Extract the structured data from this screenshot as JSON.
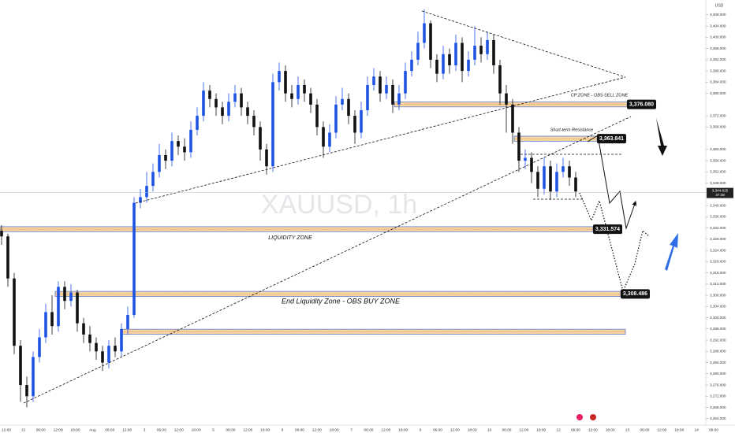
{
  "chart_data": {
    "type": "candlestick",
    "watermark": "XAUUSD, 1h",
    "currency": "USD",
    "up_color": "#1e53e5",
    "down_color": "#111111",
    "ylim": [
      3261.7,
      3413.3
    ],
    "yticks": [
      {
        "value": 3264,
        "label": "3,264.000"
      },
      {
        "value": 3268,
        "label": "3,268.000"
      },
      {
        "value": 3272,
        "label": "3,272.000"
      },
      {
        "value": 3276,
        "label": "3,276.000"
      },
      {
        "value": 3280,
        "label": "3,280.000"
      },
      {
        "value": 3284,
        "label": "3,284.000"
      },
      {
        "value": 3288,
        "label": "3,288.000"
      },
      {
        "value": 3292,
        "label": "3,292.000"
      },
      {
        "value": 3296,
        "label": "3,296.000"
      },
      {
        "value": 3300,
        "label": "3,300.000"
      },
      {
        "value": 3304,
        "label": "3,304.000"
      },
      {
        "value": 3308,
        "label": "3,308.000"
      },
      {
        "value": 3312,
        "label": "3,312.000"
      },
      {
        "value": 3316,
        "label": "3,316.000"
      },
      {
        "value": 3320,
        "label": "3,320.000"
      },
      {
        "value": 3324,
        "label": "3,324.000"
      },
      {
        "value": 3328,
        "label": "3,328.000"
      },
      {
        "value": 3332,
        "label": "3,332.000"
      },
      {
        "value": 3336,
        "label": "3,336.000"
      },
      {
        "value": 3340,
        "label": "3,340.000"
      },
      {
        "value": 3348,
        "label": "3,348.000"
      },
      {
        "value": 3352,
        "label": "3,352.000"
      },
      {
        "value": 3356,
        "label": "3,356.000"
      },
      {
        "value": 3360,
        "label": "3,360.000"
      },
      {
        "value": 3368,
        "label": "3,368.000"
      },
      {
        "value": 3372,
        "label": "3,372.000"
      },
      {
        "value": 3380,
        "label": "3,380.000"
      },
      {
        "value": 3384,
        "label": "3,384.000"
      },
      {
        "value": 3388,
        "label": "3,388.000"
      },
      {
        "value": 3392,
        "label": "3,392.000"
      },
      {
        "value": 3396,
        "label": "3,396.000"
      },
      {
        "value": 3400,
        "label": "3,400.000"
      },
      {
        "value": 3404,
        "label": "3,404.000"
      },
      {
        "value": 3408,
        "label": "3,408.000"
      }
    ],
    "x_labels": [
      "12:00",
      "21",
      "06:00",
      "12:00",
      "18:00",
      "Aug",
      "06:00",
      "12:00",
      "3",
      "06:00",
      "12:00",
      "18:00",
      "5",
      "06:00",
      "12:00",
      "18:00",
      "6",
      "06:00",
      "12:00",
      "18:00",
      "7",
      "06:00",
      "12:00",
      "18:00",
      "8",
      "06:00",
      "12:00",
      "18:00",
      "10",
      "06:00",
      "12:00",
      "18:00",
      "12",
      "06:00",
      "12:00",
      "18:00",
      "13",
      "06:00",
      "12:00",
      "18:00",
      "14",
      "06:00"
    ],
    "open": [
      3331,
      3329,
      3314,
      3290,
      3276,
      3272,
      3286,
      3293,
      3302,
      3297,
      3311,
      3306,
      3309,
      3298,
      3294,
      3291,
      3288,
      3284,
      3290,
      3288,
      3296,
      3301,
      3341,
      3343,
      3347,
      3352,
      3358,
      3356,
      3363,
      3361,
      3359,
      3367,
      3372,
      3381,
      3378,
      3375,
      3372,
      3377,
      3380,
      3375,
      3372,
      3368,
      3360,
      3354,
      3384,
      3388,
      3380,
      3378,
      3383,
      3380,
      3376,
      3368,
      3361,
      3366,
      3376,
      3378,
      3372,
      3366,
      3374,
      3383,
      3386,
      3380,
      3383,
      3376,
      3380,
      3388,
      3392,
      3398,
      3405,
      3392,
      3387,
      3394,
      3390,
      3398,
      3388,
      3392,
      3397,
      3394,
      3399,
      3390,
      3380,
      3376,
      3366,
      3356,
      3357,
      3352,
      3346,
      3354,
      3345,
      3352,
      3354,
      3350
    ],
    "high": [
      3333,
      3330,
      3316,
      3292,
      3279,
      3288,
      3296,
      3305,
      3308,
      3313,
      3313,
      3312,
      3310,
      3300,
      3297,
      3293,
      3290,
      3292,
      3293,
      3298,
      3304,
      3343,
      3346,
      3352,
      3355,
      3362,
      3360,
      3366,
      3365,
      3364,
      3370,
      3375,
      3384,
      3383,
      3380,
      3377,
      3380,
      3383,
      3382,
      3377,
      3374,
      3370,
      3362,
      3387,
      3391,
      3390,
      3383,
      3386,
      3385,
      3382,
      3378,
      3370,
      3369,
      3379,
      3382,
      3380,
      3374,
      3377,
      3386,
      3389,
      3388,
      3386,
      3385,
      3383,
      3391,
      3395,
      3402,
      3410,
      3406,
      3394,
      3397,
      3396,
      3401,
      3400,
      3395,
      3404,
      3400,
      3402,
      3401,
      3392,
      3383,
      3378,
      3368,
      3360,
      3359,
      3354,
      3357,
      3356,
      3355,
      3357,
      3356,
      3352
    ],
    "low": [
      3326,
      3311,
      3287,
      3270,
      3268,
      3270,
      3284,
      3291,
      3294,
      3295,
      3303,
      3304,
      3295,
      3291,
      3288,
      3285,
      3281,
      3282,
      3286,
      3286,
      3294,
      3300,
      3339,
      3341,
      3345,
      3350,
      3353,
      3354,
      3358,
      3356,
      3357,
      3365,
      3370,
      3375,
      3372,
      3369,
      3370,
      3375,
      3372,
      3369,
      3365,
      3356,
      3351,
      3352,
      3381,
      3377,
      3375,
      3376,
      3377,
      3373,
      3365,
      3357,
      3359,
      3364,
      3374,
      3369,
      3362,
      3364,
      3372,
      3381,
      3377,
      3378,
      3373,
      3374,
      3378,
      3386,
      3390,
      3396,
      3389,
      3384,
      3385,
      3387,
      3388,
      3384,
      3386,
      3390,
      3391,
      3392,
      3387,
      3376,
      3366,
      3362,
      3352,
      3353,
      3348,
      3343,
      3344,
      3342,
      3343,
      3350,
      3347,
      3343
    ],
    "close": [
      3329,
      3314,
      3290,
      3276,
      3272,
      3286,
      3293,
      3302,
      3297,
      3311,
      3306,
      3309,
      3298,
      3294,
      3291,
      3288,
      3284,
      3290,
      3288,
      3296,
      3301,
      3341,
      3343,
      3347,
      3352,
      3358,
      3356,
      3363,
      3361,
      3359,
      3367,
      3372,
      3381,
      3378,
      3375,
      3372,
      3377,
      3380,
      3375,
      3372,
      3368,
      3360,
      3354,
      3384,
      3388,
      3380,
      3378,
      3383,
      3380,
      3376,
      3368,
      3361,
      3366,
      3376,
      3378,
      3372,
      3366,
      3374,
      3383,
      3386,
      3380,
      3383,
      3376,
      3380,
      3388,
      3392,
      3398,
      3405,
      3392,
      3387,
      3394,
      3390,
      3398,
      3388,
      3392,
      3397,
      3394,
      3399,
      3390,
      3380,
      3376,
      3366,
      3356,
      3357,
      3352,
      3346,
      3354,
      3345,
      3352,
      3354,
      3350,
      3345
    ],
    "current_price": {
      "value": 3344.625,
      "label": "3,344.625"
    },
    "countdown": "37:38",
    "zones": [
      {
        "value": 3376.08,
        "label": "3,376.080",
        "text": "CP ZONE - OBS SELL ZONE"
      },
      {
        "value": 3363.841,
        "label": "3,363.841",
        "text": "Short-term Resistance"
      },
      {
        "value": 3331.574,
        "label": "3,331.574",
        "text": "LIQUIDITY ZONE"
      },
      {
        "value": 3308.486,
        "label": "3,308.486",
        "text": "End Liquidity Zone - OBS BUY ZONE"
      },
      {
        "value": 3295
      }
    ]
  }
}
